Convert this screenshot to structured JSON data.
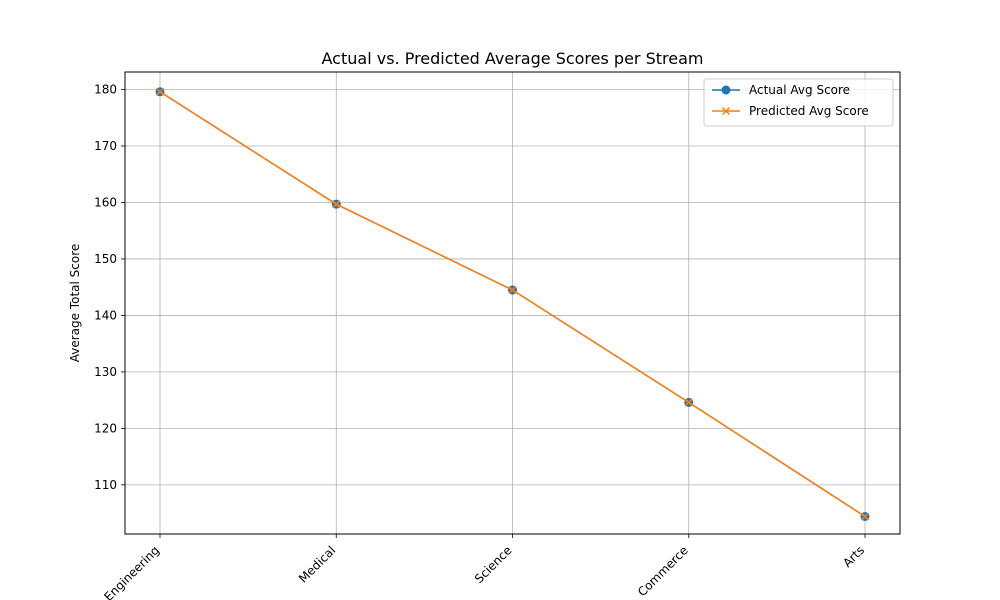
{
  "chart_data": {
    "type": "line",
    "title": "Actual vs. Predicted Average Scores per Stream",
    "xlabel": "",
    "ylabel": "Average Total Score",
    "categories": [
      "Engineering",
      "Medical",
      "Science",
      "Commerce",
      "Arts"
    ],
    "ylim": [
      101.3,
      183.1
    ],
    "yticks": [
      110,
      120,
      130,
      140,
      150,
      160,
      170,
      180
    ],
    "grid": true,
    "legend_position": "top-right",
    "series": [
      {
        "name": "Actual Avg Score",
        "marker": "circle",
        "color": "#1f77b4",
        "values": [
          179.6,
          159.7,
          144.5,
          124.6,
          104.4
        ]
      },
      {
        "name": "Predicted Avg Score",
        "marker": "x",
        "color": "#ff7f0e",
        "values": [
          179.6,
          159.7,
          144.5,
          124.6,
          104.4
        ]
      }
    ]
  }
}
